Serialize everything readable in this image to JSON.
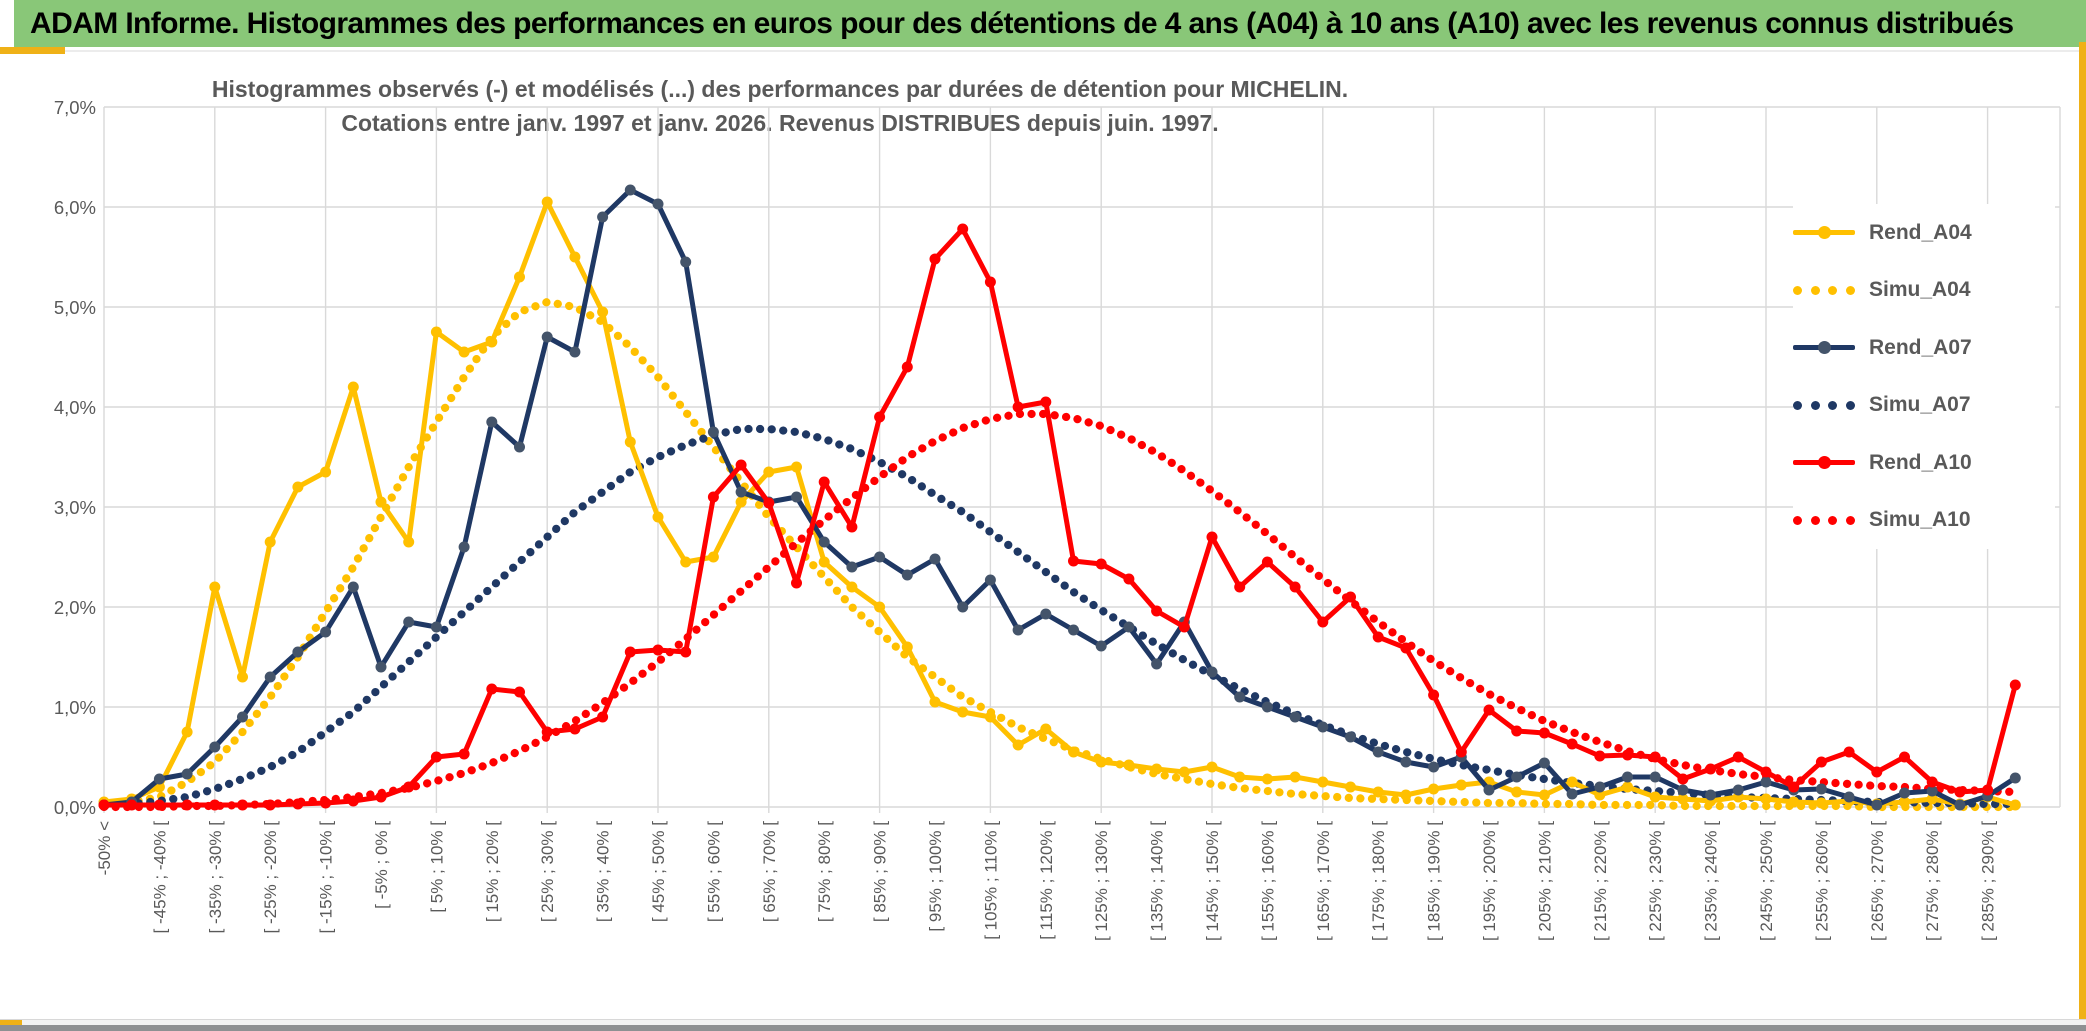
{
  "banner": {
    "title": "ADAM Informe. Histogrammes des performances en euros pour des détentions de 4 ans (A04) à 10 ans (A10) avec les revenus connus distribués"
  },
  "colors": {
    "banner_bg": "#89C778",
    "accent_gold": "#EFB117",
    "grid": "#D9D9D9",
    "text_gray": "#595959",
    "yellow": "#FFC000",
    "navy": "#1F3864",
    "navy_marker": "#44546A",
    "red": "#FF0000",
    "bottom_bar": "#8E9092"
  },
  "chart_data": {
    "type": "line",
    "title_line1": "Histogrammes observés (-) et modélisés (...) des performances par durées de détention pour MICHELIN.",
    "title_line2": "Cotations entre janv. 1997 et janv. 2026. Revenus DISTRIBUES depuis juin. 1997.",
    "ylabel_ticks": [
      "0,0%",
      "1,0%",
      "2,0%",
      "3,0%",
      "4,0%",
      "5,0%",
      "6,0%",
      "7,0%"
    ],
    "ylim": [
      0,
      7
    ],
    "grid": true,
    "legend_position": "right",
    "categories": [
      "-50% <",
      "",
      "[ -45% ; -40% [",
      "",
      "[ -35% ; -30% [",
      "",
      "[ -25% ; -20% [",
      "",
      "[ -15% ; -10% [",
      "",
      "[ -5% ; 0% [",
      "",
      "[ 5% ; 10% [",
      "",
      "[ 15% ; 20% [",
      "",
      "[ 25% ; 30% [",
      "",
      "[ 35% ; 40% [",
      "",
      "[ 45% ; 50% [",
      "",
      "[ 55% ; 60% [",
      "",
      "[ 65% ; 70% [",
      "",
      "[ 75% ; 80% [",
      "",
      "[ 85% ; 90% [",
      "",
      "[ 95% ; 100% [",
      "",
      "[ 105% ; 110% [",
      "",
      "[ 115% ; 120% [",
      "",
      "[ 125% ; 130% [",
      "",
      "[ 135% ; 140% [",
      "",
      "[ 145% ; 150% [",
      "",
      "[ 155% ; 160% [",
      "",
      "[ 165% ; 170% [",
      "",
      "[ 175% ; 180% [",
      "",
      "[ 185% ; 190% [",
      "",
      "[ 195% ; 200% [",
      "",
      "[ 205% ; 210% [",
      "",
      "[ 215% ; 220% [",
      "",
      "[ 225% ; 230% [",
      "",
      "[ 235% ; 240% [",
      "",
      "[ 245% ; 250% [",
      "",
      "[ 255% ; 260% [",
      "",
      "[ 265% ; 270% [",
      "",
      "[ 275% ; 280% [",
      "",
      "[ 285% ; 290% [",
      ""
    ],
    "series": [
      {
        "name": "Rend_A04",
        "style": "solid",
        "color": "#FFC000",
        "marker": "#FFC000",
        "values": [
          0.05,
          0.08,
          0.2,
          0.75,
          2.2,
          1.3,
          2.65,
          3.2,
          3.35,
          4.2,
          3.05,
          2.65,
          4.75,
          4.55,
          4.65,
          5.3,
          6.05,
          5.5,
          4.95,
          3.65,
          2.9,
          2.45,
          2.5,
          3.05,
          3.35,
          3.4,
          2.45,
          2.2,
          2.0,
          1.6,
          1.05,
          0.95,
          0.9,
          0.62,
          0.78,
          0.55,
          0.45,
          0.42,
          0.38,
          0.35,
          0.4,
          0.3,
          0.28,
          0.3,
          0.25,
          0.2,
          0.15,
          0.12,
          0.18,
          0.22,
          0.25,
          0.15,
          0.12,
          0.25,
          0.12,
          0.2,
          0.1,
          0.08,
          0.06,
          0.1,
          0.08,
          0.05,
          0.04,
          0.06,
          0.03,
          0.05,
          0.08,
          0.03,
          0.1,
          0.02
        ]
      },
      {
        "name": "Simu_A04",
        "style": "dotted",
        "color": "#FFC000",
        "values": [
          0.02,
          0.05,
          0.1,
          0.25,
          0.45,
          0.75,
          1.1,
          1.5,
          1.95,
          2.4,
          2.9,
          3.4,
          3.85,
          4.3,
          4.7,
          4.95,
          5.05,
          5.0,
          4.85,
          4.6,
          4.3,
          3.95,
          3.6,
          3.25,
          2.9,
          2.6,
          2.3,
          2.0,
          1.75,
          1.5,
          1.3,
          1.1,
          0.95,
          0.8,
          0.68,
          0.57,
          0.48,
          0.4,
          0.33,
          0.28,
          0.23,
          0.19,
          0.16,
          0.13,
          0.11,
          0.09,
          0.08,
          0.07,
          0.06,
          0.05,
          0.04,
          0.04,
          0.03,
          0.03,
          0.02,
          0.02,
          0.02,
          0.01,
          0.01,
          0.01,
          0.01,
          0.01,
          0.01,
          0.01,
          0,
          0,
          0,
          0,
          0,
          0
        ]
      },
      {
        "name": "Rend_A07",
        "style": "solid",
        "color": "#1F3864",
        "marker": "#44546A",
        "values": [
          0.02,
          0.05,
          0.28,
          0.33,
          0.6,
          0.9,
          1.3,
          1.55,
          1.75,
          2.2,
          1.4,
          1.85,
          1.8,
          2.6,
          3.85,
          3.6,
          4.7,
          4.55,
          5.9,
          6.17,
          6.03,
          5.45,
          3.75,
          3.15,
          3.05,
          3.1,
          2.65,
          2.4,
          2.5,
          2.32,
          2.48,
          2.0,
          2.27,
          1.77,
          1.93,
          1.77,
          1.61,
          1.8,
          1.43,
          1.85,
          1.35,
          1.1,
          1.0,
          0.9,
          0.8,
          0.7,
          0.55,
          0.45,
          0.4,
          0.5,
          0.17,
          0.3,
          0.44,
          0.13,
          0.2,
          0.3,
          0.3,
          0.17,
          0.12,
          0.17,
          0.25,
          0.17,
          0.18,
          0.1,
          0.02,
          0.14,
          0.16,
          0.02,
          0.11,
          0.29
        ]
      },
      {
        "name": "Simu_A07",
        "style": "dotted",
        "color": "#1F3864",
        "values": [
          0.01,
          0.03,
          0.06,
          0.1,
          0.18,
          0.28,
          0.4,
          0.55,
          0.75,
          0.95,
          1.2,
          1.45,
          1.7,
          1.95,
          2.2,
          2.45,
          2.7,
          2.95,
          3.15,
          3.35,
          3.5,
          3.62,
          3.72,
          3.78,
          3.78,
          3.75,
          3.68,
          3.58,
          3.45,
          3.3,
          3.12,
          2.95,
          2.75,
          2.55,
          2.35,
          2.15,
          1.97,
          1.8,
          1.63,
          1.47,
          1.32,
          1.18,
          1.05,
          0.93,
          0.82,
          0.72,
          0.63,
          0.55,
          0.48,
          0.42,
          0.37,
          0.32,
          0.28,
          0.24,
          0.21,
          0.18,
          0.16,
          0.14,
          0.12,
          0.1,
          0.09,
          0.08,
          0.07,
          0.06,
          0.05,
          0.05,
          0.04,
          0.04,
          0.03,
          0.03
        ]
      },
      {
        "name": "Rend_A10",
        "style": "solid",
        "color": "#FF0000",
        "marker": "#FF0000",
        "values": [
          0.02,
          0.02,
          0.02,
          0.02,
          0.02,
          0.02,
          0.02,
          0.03,
          0.04,
          0.06,
          0.1,
          0.2,
          0.5,
          0.53,
          1.18,
          1.15,
          0.75,
          0.78,
          0.9,
          1.55,
          1.57,
          1.55,
          3.1,
          3.42,
          3.04,
          2.24,
          3.25,
          2.8,
          3.9,
          4.4,
          5.48,
          5.78,
          5.25,
          4.0,
          4.05,
          2.46,
          2.43,
          2.28,
          1.96,
          1.8,
          2.7,
          2.2,
          2.45,
          2.2,
          1.85,
          2.1,
          1.7,
          1.59,
          1.12,
          0.55,
          0.97,
          0.76,
          0.74,
          0.63,
          0.51,
          0.52,
          0.5,
          0.28,
          0.38,
          0.5,
          0.35,
          0.2,
          0.45,
          0.55,
          0.35,
          0.5,
          0.25,
          0.15,
          0.17,
          1.22
        ]
      },
      {
        "name": "Simu_A10",
        "style": "dotted",
        "color": "#FF0000",
        "values": [
          0,
          0,
          0,
          0.01,
          0.01,
          0.02,
          0.03,
          0.05,
          0.07,
          0.1,
          0.14,
          0.19,
          0.26,
          0.34,
          0.44,
          0.56,
          0.7,
          0.86,
          1.04,
          1.24,
          1.45,
          1.68,
          1.92,
          2.16,
          2.4,
          2.64,
          2.87,
          3.09,
          3.3,
          3.5,
          3.66,
          3.79,
          3.88,
          3.93,
          3.93,
          3.89,
          3.81,
          3.69,
          3.54,
          3.36,
          3.16,
          2.95,
          2.73,
          2.5,
          2.28,
          2.06,
          1.85,
          1.65,
          1.46,
          1.29,
          1.13,
          0.99,
          0.86,
          0.75,
          0.65,
          0.56,
          0.48,
          0.42,
          0.37,
          0.33,
          0.3,
          0.27,
          0.25,
          0.23,
          0.21,
          0.2,
          0.18,
          0.17,
          0.16,
          0.15
        ]
      }
    ]
  }
}
